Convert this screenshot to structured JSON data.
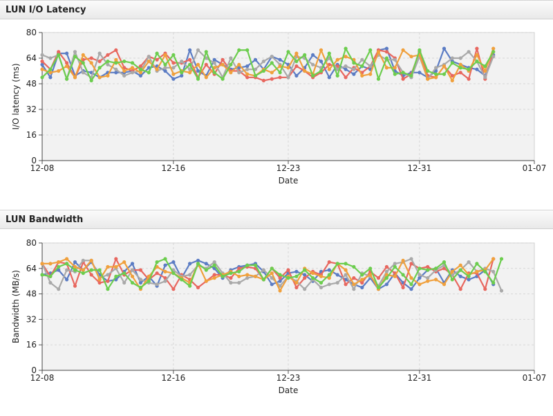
{
  "colors": {
    "header_bg": "#ececec",
    "plot_bg": "#f2f2f2",
    "grid": "#d6d6d6",
    "series": [
      "#5b7cc4",
      "#e8675f",
      "#a9a9a9",
      "#f0a03c",
      "#6ccd4e"
    ]
  },
  "latency_panel": {
    "title": "LUN I/O Latency"
  },
  "bandwidth_panel": {
    "title": "LUN Bandwidth"
  },
  "chart_data": [
    {
      "type": "line",
      "xlabel": "Date",
      "ylabel": "I/O latency (ms)",
      "ylim": [
        0,
        80
      ],
      "yticks": [
        0,
        16,
        32,
        48,
        64,
        80
      ],
      "xlim": [
        "2024-12-08",
        "2025-01-07"
      ],
      "xticks": [
        {
          "date": "2024-12-08",
          "label": "12-08"
        },
        {
          "date": "2024-12-16",
          "label": "12-16"
        },
        {
          "date": "2024-12-23",
          "label": "12-23"
        },
        {
          "date": "2024-12-31",
          "label": "12-31"
        },
        {
          "date": "2025-01-07",
          "label": "01-07"
        }
      ],
      "grid": true,
      "x_start": "2024-12-08",
      "x_step_days": 0.5,
      "series": [
        {
          "values": [
            60,
            52,
            67,
            67,
            53,
            56,
            55,
            52,
            55,
            55,
            55,
            56,
            53,
            58,
            59,
            56,
            51,
            53,
            69,
            56,
            53,
            63,
            60,
            57,
            58,
            59,
            63,
            57,
            65,
            63,
            60,
            53,
            58,
            66,
            62,
            52,
            60,
            57,
            54,
            59,
            57,
            69,
            70,
            56,
            53,
            55,
            55,
            52,
            56,
            70,
            62,
            60,
            58,
            57,
            53,
            66
          ]
        },
        {
          "values": [
            62,
            57,
            68,
            61,
            52,
            63,
            64,
            62,
            66,
            69,
            58,
            56,
            59,
            65,
            63,
            67,
            61,
            61,
            63,
            52,
            60,
            54,
            63,
            56,
            56,
            52,
            52,
            50,
            51,
            52,
            52,
            59,
            56,
            52,
            55,
            60,
            59,
            52,
            58,
            55,
            59,
            69,
            68,
            64,
            51,
            54,
            68,
            53,
            52,
            59,
            53,
            55,
            51,
            70,
            51,
            68
          ]
        },
        {
          "values": [
            66,
            64,
            66,
            51,
            68,
            55,
            52,
            67,
            60,
            57,
            53,
            55,
            56,
            65,
            56,
            58,
            58,
            62,
            57,
            69,
            64,
            61,
            52,
            64,
            55,
            57,
            57,
            62,
            65,
            60,
            52,
            65,
            64,
            60,
            58,
            64,
            57,
            59,
            57,
            63,
            59,
            66,
            63,
            63,
            55,
            52,
            65,
            51,
            58,
            60,
            64,
            64,
            68,
            62,
            52,
            65
          ]
        },
        {
          "values": [
            57,
            55,
            56,
            59,
            52,
            66,
            61,
            52,
            53,
            63,
            56,
            58,
            55,
            62,
            57,
            66,
            54,
            56,
            55,
            60,
            52,
            58,
            60,
            55,
            60,
            54,
            53,
            57,
            55,
            59,
            58,
            67,
            56,
            54,
            69,
            57,
            63,
            65,
            63,
            53,
            54,
            68,
            58,
            58,
            69,
            65,
            66,
            51,
            52,
            59,
            50,
            60,
            56,
            66,
            56,
            70
          ]
        },
        {
          "values": [
            52,
            57,
            66,
            51,
            65,
            61,
            50,
            58,
            62,
            61,
            62,
            61,
            57,
            55,
            67,
            60,
            66,
            55,
            60,
            51,
            68,
            55,
            51,
            60,
            69,
            69,
            53,
            56,
            61,
            55,
            68,
            62,
            66,
            53,
            56,
            67,
            53,
            70,
            61,
            59,
            69,
            51,
            64,
            54,
            55,
            53,
            69,
            56,
            54,
            54,
            61,
            58,
            57,
            62,
            59,
            68
          ]
        }
      ]
    },
    {
      "type": "line",
      "xlabel": "Date",
      "ylabel": "Bandwidth (MB/s)",
      "ylim": [
        0,
        80
      ],
      "yticks": [
        0,
        16,
        32,
        48,
        64,
        80
      ],
      "xlim": [
        "2024-12-08",
        "2025-01-07"
      ],
      "xticks": [
        {
          "date": "2024-12-08",
          "label": "12-08"
        },
        {
          "date": "2024-12-16",
          "label": "12-16"
        },
        {
          "date": "2024-12-23",
          "label": "12-23"
        },
        {
          "date": "2024-12-31",
          "label": "12-31"
        },
        {
          "date": "2025-01-07",
          "label": "01-07"
        }
      ],
      "grid": true,
      "x_start": "2024-12-08",
      "x_step_days": 0.5,
      "series": [
        {
          "values": [
            60,
            61,
            63,
            57,
            68,
            63,
            68,
            60,
            56,
            57,
            62,
            67,
            55,
            59,
            53,
            66,
            68,
            58,
            67,
            69,
            67,
            64,
            58,
            63,
            65,
            66,
            67,
            62,
            54,
            56,
            61,
            62,
            60,
            56,
            62,
            63,
            60,
            57,
            54,
            52,
            58,
            51,
            54,
            61,
            55,
            51,
            58,
            63,
            64,
            55,
            63,
            59,
            57,
            59,
            63,
            54
          ]
        },
        {
          "values": [
            67,
            59,
            68,
            67,
            53,
            68,
            60,
            55,
            56,
            70,
            60,
            63,
            63,
            57,
            61,
            58,
            51,
            60,
            57,
            52,
            56,
            60,
            60,
            58,
            64,
            65,
            64,
            57,
            64,
            58,
            63,
            52,
            58,
            62,
            60,
            68,
            67,
            54,
            58,
            55,
            62,
            58,
            65,
            61,
            52,
            67,
            64,
            65,
            62,
            64,
            60,
            51,
            61,
            61,
            51,
            70
          ]
        },
        {
          "values": [
            67,
            55,
            51,
            63,
            62,
            69,
            69,
            58,
            60,
            64,
            55,
            63,
            57,
            55,
            54,
            56,
            63,
            59,
            60,
            66,
            64,
            68,
            61,
            55,
            55,
            58,
            59,
            63,
            58,
            53,
            59,
            56,
            51,
            57,
            52,
            54,
            55,
            60,
            51,
            61,
            59,
            53,
            62,
            67,
            68,
            70,
            60,
            58,
            63,
            66,
            60,
            63,
            68,
            62,
            64,
            62,
            50
          ]
        },
        {
          "values": [
            67,
            67,
            68,
            70,
            65,
            63,
            69,
            57,
            65,
            65,
            68,
            59,
            51,
            59,
            65,
            62,
            61,
            58,
            55,
            67,
            56,
            58,
            60,
            62,
            59,
            60,
            59,
            57,
            61,
            50,
            59,
            55,
            64,
            61,
            59,
            58,
            67,
            63,
            54,
            57,
            60,
            51,
            60,
            59,
            69,
            58,
            54,
            56,
            57,
            54,
            62,
            66,
            60,
            62,
            63,
            70
          ]
        },
        {
          "values": [
            60,
            59,
            65,
            67,
            63,
            61,
            63,
            63,
            51,
            59,
            61,
            55,
            52,
            56,
            68,
            70,
            61,
            57,
            53,
            67,
            63,
            66,
            59,
            61,
            62,
            66,
            66,
            57,
            64,
            60,
            58,
            59,
            63,
            58,
            55,
            60,
            67,
            67,
            65,
            60,
            64,
            52,
            58,
            65,
            60,
            54,
            64,
            63,
            64,
            68,
            57,
            63,
            59,
            67,
            62,
            55,
            70
          ]
        }
      ]
    }
  ]
}
